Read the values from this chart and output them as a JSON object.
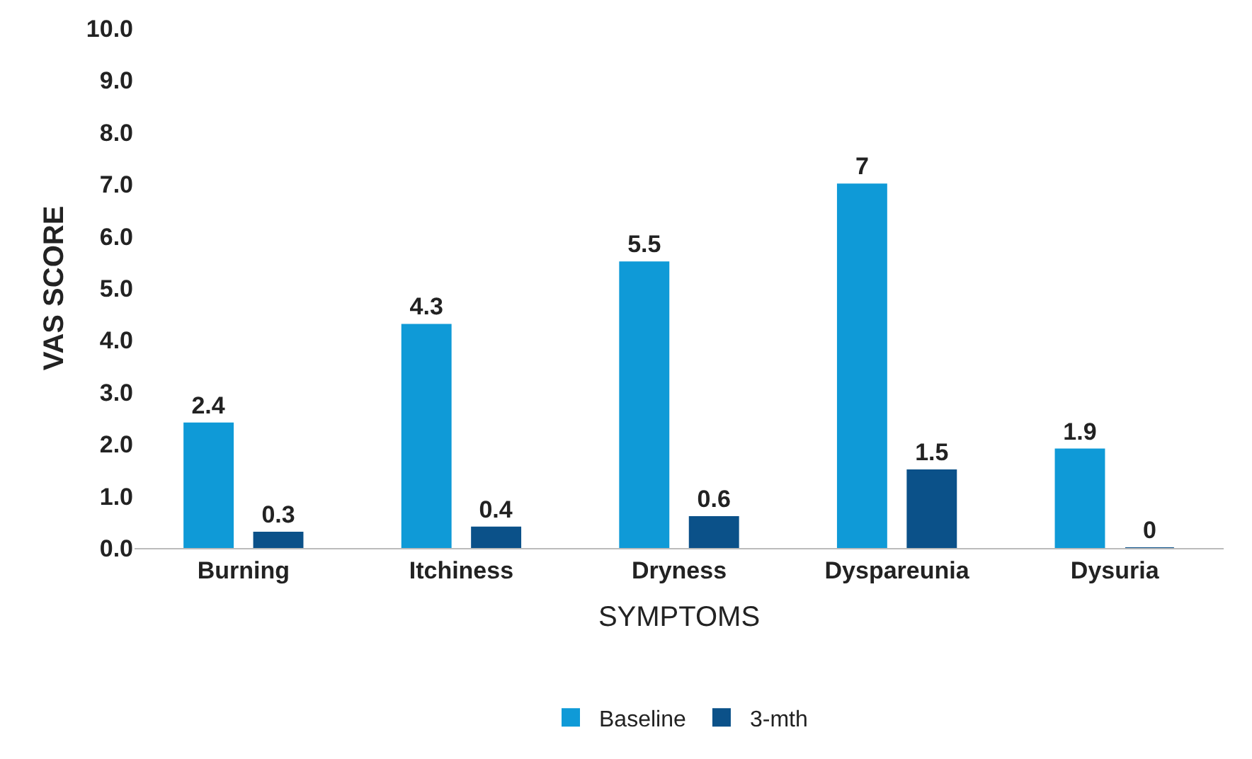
{
  "chart_data": {
    "type": "bar",
    "xlabel": "SYMPTOMS",
    "ylabel": "VAS SCORE",
    "categories": [
      "Burning",
      "Itchiness",
      "Dryness",
      "Dyspareunia",
      "Dysuria"
    ],
    "series": [
      {
        "name": "Baseline",
        "color": "#0f9ad7",
        "values": [
          2.4,
          4.3,
          5.5,
          7,
          1.9
        ]
      },
      {
        "name": "3-mth",
        "color": "#0b5189",
        "values": [
          0.3,
          0.4,
          0.6,
          1.5,
          0
        ]
      }
    ],
    "ylim": [
      0,
      10
    ],
    "yticks": [
      {
        "value": 0,
        "label": "0.0"
      },
      {
        "value": 1,
        "label": "1.0"
      },
      {
        "value": 2,
        "label": "2.0"
      },
      {
        "value": 3,
        "label": "3.0"
      },
      {
        "value": 4,
        "label": "4.0"
      },
      {
        "value": 5,
        "label": "5.0"
      },
      {
        "value": 6,
        "label": "6.0"
      },
      {
        "value": 7,
        "label": "7.0"
      },
      {
        "value": 8,
        "label": "8.0"
      },
      {
        "value": 9,
        "label": "9.0"
      },
      {
        "value": 10,
        "label": "10.0"
      }
    ],
    "grid": false,
    "legend": "bottom",
    "data_labels": true
  }
}
